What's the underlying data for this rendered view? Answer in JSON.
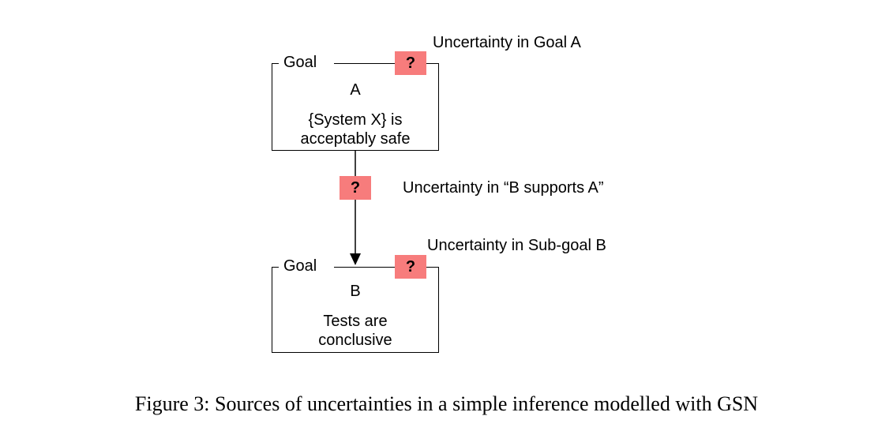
{
  "goal_a": {
    "tag": "Goal",
    "id": "A",
    "text_line1": "{System X} is",
    "text_line2": "acceptably safe",
    "uncertainty_badge": "?",
    "uncertainty_label": "Uncertainty in Goal A"
  },
  "link": {
    "uncertainty_badge": "?",
    "uncertainty_label": "Uncertainty in “B supports A”"
  },
  "goal_b": {
    "tag": "Goal",
    "id": "B",
    "text_line1": "Tests are",
    "text_line2": "conclusive",
    "uncertainty_badge": "?",
    "uncertainty_label": "Uncertainty in Sub-goal B"
  },
  "caption": "Figure 3: Sources of uncertainties in a simple inference modelled with GSN",
  "colors": {
    "badge": "#f77c7c",
    "stroke": "#000000"
  }
}
